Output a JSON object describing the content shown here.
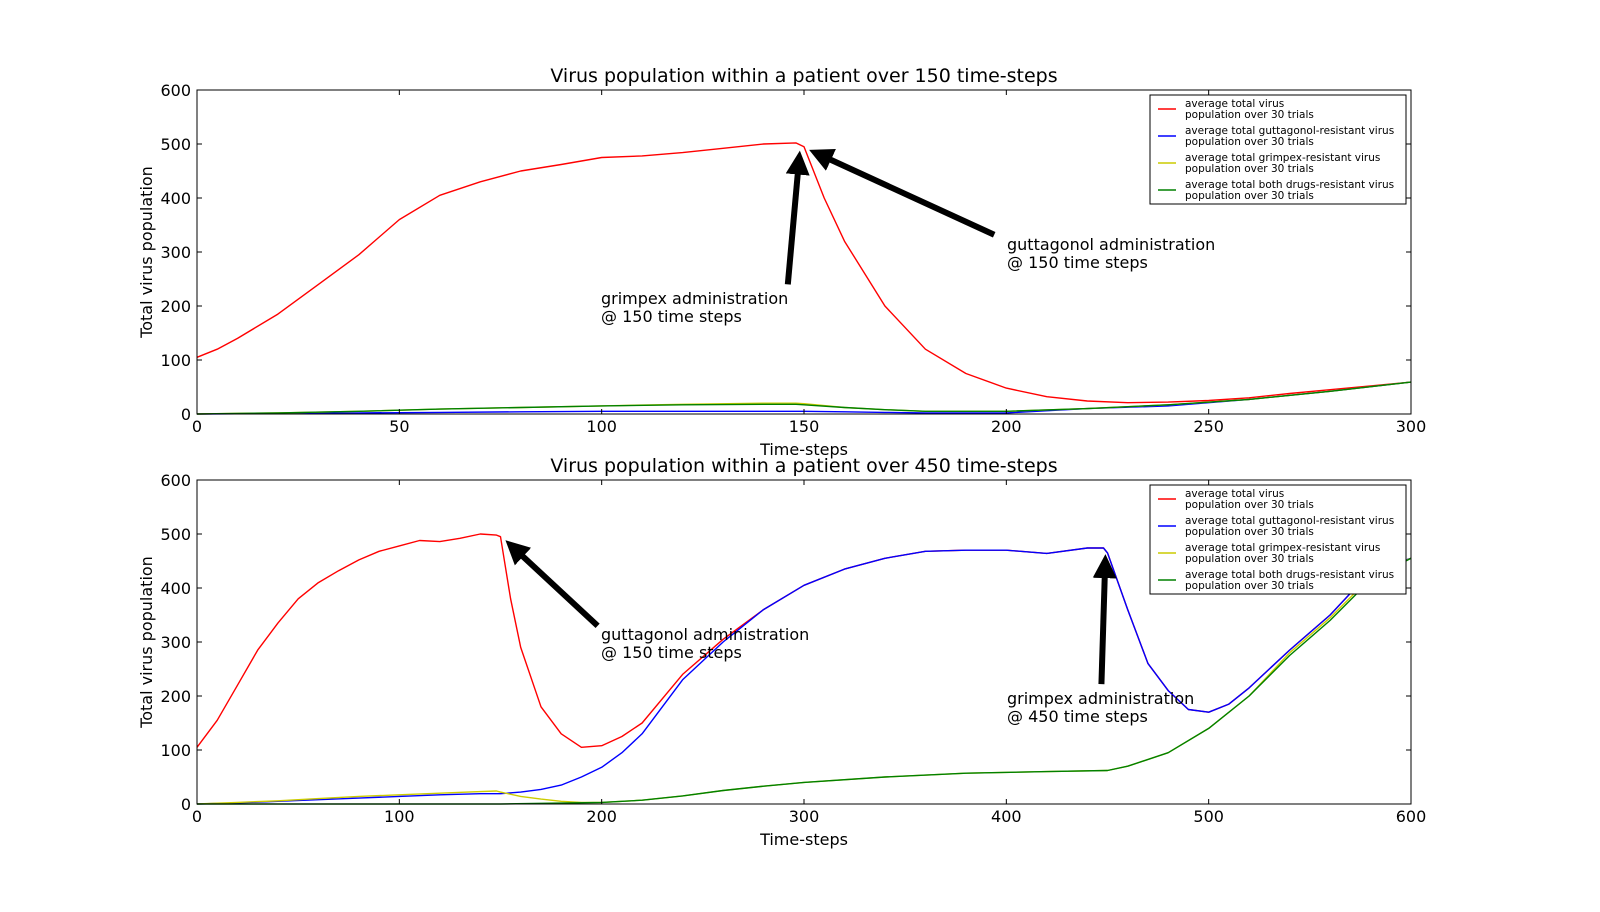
{
  "chart_data": [
    {
      "type": "line",
      "title": "Virus population within a patient over 150 time-steps",
      "xlabel": "Time-steps",
      "ylabel": "Total virus population",
      "xlim": [
        0,
        300
      ],
      "ylim": [
        0,
        600
      ],
      "xticks": [
        "0",
        "50",
        "100",
        "150",
        "200",
        "250",
        "300"
      ],
      "yticks": [
        "0",
        "100",
        "200",
        "300",
        "400",
        "500",
        "600"
      ],
      "grid": false,
      "legend_position": "top-right",
      "series": [
        {
          "name": "average total virus\npopulation over 30 trials",
          "color": "#ff0000",
          "x": [
            0,
            5,
            10,
            20,
            30,
            40,
            50,
            60,
            70,
            80,
            90,
            100,
            110,
            120,
            130,
            140,
            148,
            150,
            155,
            160,
            170,
            180,
            190,
            200,
            210,
            220,
            230,
            240,
            250,
            260,
            270,
            280,
            290,
            300
          ],
          "values": [
            105,
            120,
            140,
            185,
            240,
            295,
            360,
            405,
            430,
            450,
            462,
            475,
            478,
            484,
            492,
            500,
            502,
            495,
            400,
            320,
            200,
            120,
            75,
            48,
            32,
            24,
            21,
            22,
            25,
            30,
            38,
            45,
            52,
            59
          ]
        },
        {
          "name": "average total guttagonol-resistant virus\npopulation over 30 trials",
          "color": "#0000ff",
          "x": [
            0,
            20,
            40,
            60,
            80,
            100,
            120,
            140,
            150,
            160,
            170,
            180,
            200,
            220,
            240,
            260,
            280,
            300
          ],
          "values": [
            0,
            1,
            2,
            3,
            4,
            5,
            5,
            5,
            5,
            4,
            3,
            2,
            2,
            10,
            15,
            27,
            42,
            59
          ]
        },
        {
          "name": "average total grimpex-resistant virus\npopulation over 30 trials",
          "color": "#cccc00",
          "x": [
            0,
            20,
            40,
            60,
            80,
            100,
            120,
            140,
            148,
            150,
            160,
            170,
            180,
            200,
            220,
            240,
            260,
            280,
            300
          ],
          "values": [
            0,
            2,
            5,
            9,
            12,
            15,
            18,
            20,
            20,
            19,
            12,
            8,
            5,
            5,
            10,
            17,
            27,
            42,
            59
          ]
        },
        {
          "name": "average total both drugs-resistant virus\npopulation over 30 trials",
          "color": "#008000",
          "x": [
            0,
            20,
            40,
            60,
            80,
            100,
            120,
            140,
            148,
            150,
            160,
            170,
            180,
            200,
            220,
            240,
            260,
            280,
            300
          ],
          "values": [
            0,
            2,
            5,
            9,
            12,
            15,
            17,
            18,
            18,
            17,
            12,
            8,
            5,
            5,
            10,
            17,
            27,
            42,
            59
          ]
        }
      ],
      "annotations": [
        {
          "line1": "grimpex administration",
          "line2": "@ 150 time steps",
          "arrow_tip": [
            149,
            490
          ],
          "arrow_tail": [
            146,
            240
          ]
        },
        {
          "line1": "guttagonol administration",
          "line2": "@ 150 time steps",
          "arrow_tip": [
            151,
            490
          ],
          "arrow_tail": [
            197,
            332
          ]
        }
      ]
    },
    {
      "type": "line",
      "title": "Virus population within a patient over 450 time-steps",
      "xlabel": "Time-steps",
      "ylabel": "Total virus population",
      "xlim": [
        0,
        600
      ],
      "ylim": [
        0,
        600
      ],
      "xticks": [
        "0",
        "100",
        "200",
        "300",
        "400",
        "500",
        "600"
      ],
      "yticks": [
        "0",
        "100",
        "200",
        "300",
        "400",
        "500",
        "600"
      ],
      "grid": false,
      "legend_position": "top-right",
      "series": [
        {
          "name": "average total virus\npopulation over 30 trials",
          "color": "#ff0000",
          "x": [
            0,
            10,
            20,
            30,
            40,
            50,
            60,
            70,
            80,
            90,
            100,
            110,
            120,
            130,
            140,
            148,
            150,
            155,
            160,
            170,
            180,
            190,
            200,
            210,
            220,
            240,
            260,
            280,
            300,
            320,
            340,
            360,
            380,
            400,
            420,
            440,
            448,
            450,
            460,
            470,
            480,
            490,
            500,
            510,
            520,
            540,
            560,
            580,
            600
          ],
          "values": [
            105,
            155,
            220,
            285,
            335,
            380,
            410,
            432,
            452,
            468,
            478,
            488,
            486,
            492,
            500,
            498,
            495,
            380,
            290,
            180,
            130,
            105,
            108,
            125,
            150,
            240,
            305,
            360,
            405,
            435,
            455,
            468,
            470,
            470,
            464,
            474,
            474,
            465,
            360,
            260,
            210,
            175,
            170,
            185,
            215,
            285,
            350,
            430,
            455
          ]
        },
        {
          "name": "average total guttagonol-resistant virus\npopulation over 30 trials",
          "color": "#0000ff",
          "x": [
            0,
            20,
            40,
            60,
            80,
            100,
            120,
            140,
            150,
            160,
            170,
            180,
            190,
            200,
            210,
            220,
            240,
            260,
            280,
            300,
            320,
            340,
            360,
            380,
            400,
            420,
            440,
            448,
            450,
            460,
            470,
            480,
            490,
            500,
            510,
            520,
            540,
            560,
            580,
            600
          ],
          "values": [
            0,
            2,
            5,
            8,
            11,
            14,
            17,
            19,
            19,
            22,
            27,
            35,
            50,
            68,
            95,
            130,
            230,
            300,
            360,
            405,
            435,
            455,
            468,
            470,
            470,
            464,
            474,
            474,
            465,
            360,
            260,
            210,
            175,
            170,
            185,
            215,
            285,
            350,
            430,
            455
          ]
        },
        {
          "name": "average total grimpex-resistant virus\npopulation over 30 trials",
          "color": "#cccc00",
          "x": [
            0,
            20,
            40,
            60,
            80,
            100,
            120,
            140,
            148,
            150,
            160,
            170,
            180,
            190,
            200,
            220,
            240,
            260,
            280,
            300,
            340,
            380,
            420,
            450,
            460,
            480,
            500,
            520,
            540,
            560,
            580,
            600
          ],
          "values": [
            0,
            3,
            6,
            10,
            14,
            17,
            20,
            23,
            24,
            22,
            14,
            9,
            5,
            3,
            3,
            7,
            15,
            25,
            33,
            40,
            50,
            57,
            60,
            62,
            70,
            95,
            140,
            200,
            280,
            345,
            420,
            455
          ]
        },
        {
          "name": "average total both drugs-resistant virus\npopulation over 30 trials",
          "color": "#008000",
          "x": [
            0,
            50,
            100,
            150,
            200,
            220,
            240,
            260,
            280,
            300,
            340,
            380,
            420,
            450,
            460,
            480,
            500,
            520,
            540,
            560,
            580,
            600
          ],
          "values": [
            0,
            0,
            0,
            0,
            3,
            7,
            15,
            25,
            33,
            40,
            50,
            57,
            60,
            62,
            70,
            95,
            140,
            200,
            275,
            340,
            415,
            455
          ]
        }
      ],
      "annotations": [
        {
          "line1": "guttagonol administration",
          "line2": "@ 150 time steps",
          "arrow_tip": [
            152,
            490
          ],
          "arrow_tail": [
            198,
            330
          ]
        },
        {
          "line1": "grimpex administration",
          "line2": "@ 450 time steps",
          "arrow_tip": [
            449,
            465
          ],
          "arrow_tail": [
            447,
            222
          ]
        }
      ]
    }
  ]
}
